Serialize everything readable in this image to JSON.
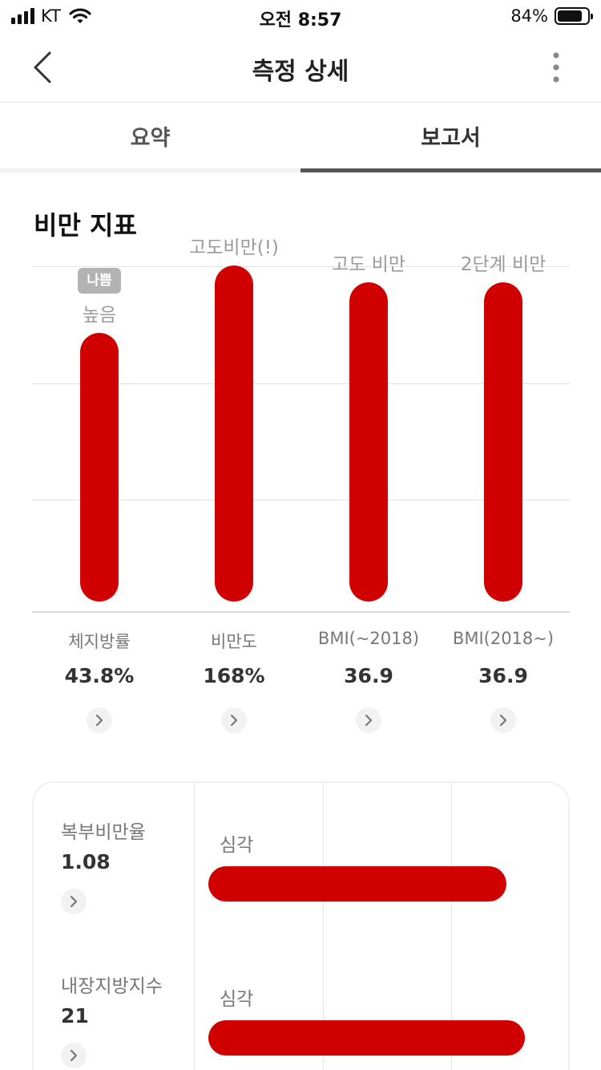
{
  "status_bar": {
    "carrier": "KT",
    "time": "오전 8:57",
    "battery": "84%",
    "battery_level": 0.84,
    "icons": [
      "signal-icon",
      "wifi-icon",
      "battery-icon"
    ]
  },
  "nav": {
    "title": "측정 상세",
    "icons": [
      "chevron-left-icon",
      "vertical-dots-icon"
    ]
  },
  "tabs": [
    {
      "label": "요약",
      "selected": false
    },
    {
      "label": "보고서",
      "selected": true
    }
  ],
  "section": {
    "title": "비만 지표"
  },
  "colors": {
    "accent": "#d10000",
    "badge": "#b3b3b3",
    "text_muted": "#9a9a9a"
  },
  "chart_data": {
    "type": "bar",
    "categories": [
      "체지방률",
      "비만도",
      "BMI(~2018)",
      "BMI(2018~)"
    ],
    "values_display": [
      "43.8%",
      "168%",
      "36.9",
      "36.9"
    ],
    "level_labels": [
      "높음",
      "고도비만(!)",
      "고도 비만",
      "2단계 비만"
    ],
    "level_fill": [
      0.8,
      1.0,
      0.95,
      0.95
    ],
    "badge": "나쁨"
  },
  "indicators": [
    {
      "name": "체지방률",
      "value": "43.8%"
    },
    {
      "name": "비만도",
      "value": "168%"
    },
    {
      "name": "BMI(~2018)",
      "value": "36.9"
    },
    {
      "name": "BMI(2018~)",
      "value": "36.9"
    }
  ],
  "details": [
    {
      "name": "복부비만율",
      "value": "1.08",
      "level": "심각",
      "level_fill": 0.81
    },
    {
      "name": "내장지방지수",
      "value": "21",
      "level": "심각",
      "level_fill": 0.86
    }
  ]
}
